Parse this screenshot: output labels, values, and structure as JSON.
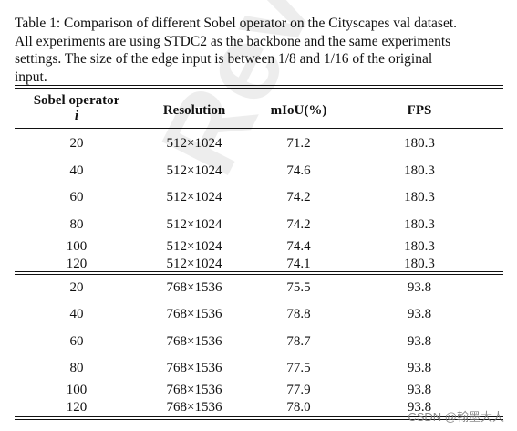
{
  "caption": {
    "lines": [
      "Table 1: Comparison of different Sobel operator on the Cityscapes val dataset.",
      "All experiments are using STDC2 as the backbone and the same experiments",
      "settings. The size of the edge input is between 1/8 and 1/16 of the original",
      "input."
    ]
  },
  "table": {
    "headers": {
      "sobel": "Sobel operator",
      "sobel_symbol": "i",
      "resolution": "Resolution",
      "miou": "mIoU(%)",
      "fps": "FPS"
    },
    "groups": [
      {
        "rows": [
          {
            "sobel": "20",
            "resolution": "512×1024",
            "miou": "71.2",
            "fps": "180.3"
          },
          {
            "sobel": "40",
            "resolution": "512×1024",
            "miou": "74.6",
            "fps": "180.3"
          },
          {
            "sobel": "60",
            "resolution": "512×1024",
            "miou": "74.2",
            "fps": "180.3"
          },
          {
            "sobel": "80",
            "resolution": "512×1024",
            "miou": "74.2",
            "fps": "180.3"
          },
          {
            "sobel": "100",
            "resolution": "512×1024",
            "miou": "74.4",
            "fps": "180.3"
          },
          {
            "sobel": "120",
            "resolution": "512×1024",
            "miou": "74.1",
            "fps": "180.3"
          }
        ]
      },
      {
        "rows": [
          {
            "sobel": "20",
            "resolution": "768×1536",
            "miou": "75.5",
            "fps": "93.8"
          },
          {
            "sobel": "40",
            "resolution": "768×1536",
            "miou": "78.8",
            "fps": "93.8"
          },
          {
            "sobel": "60",
            "resolution": "768×1536",
            "miou": "78.7",
            "fps": "93.8"
          },
          {
            "sobel": "80",
            "resolution": "768×1536",
            "miou": "77.5",
            "fps": "93.8"
          },
          {
            "sobel": "100",
            "resolution": "768×1536",
            "miou": "77.9",
            "fps": "93.8"
          },
          {
            "sobel": "120",
            "resolution": "768×1536",
            "miou": "78.0",
            "fps": "93.8"
          }
        ]
      }
    ]
  },
  "watermark": "Review",
  "csdn_watermark": "CSDN @翰墨大人"
}
